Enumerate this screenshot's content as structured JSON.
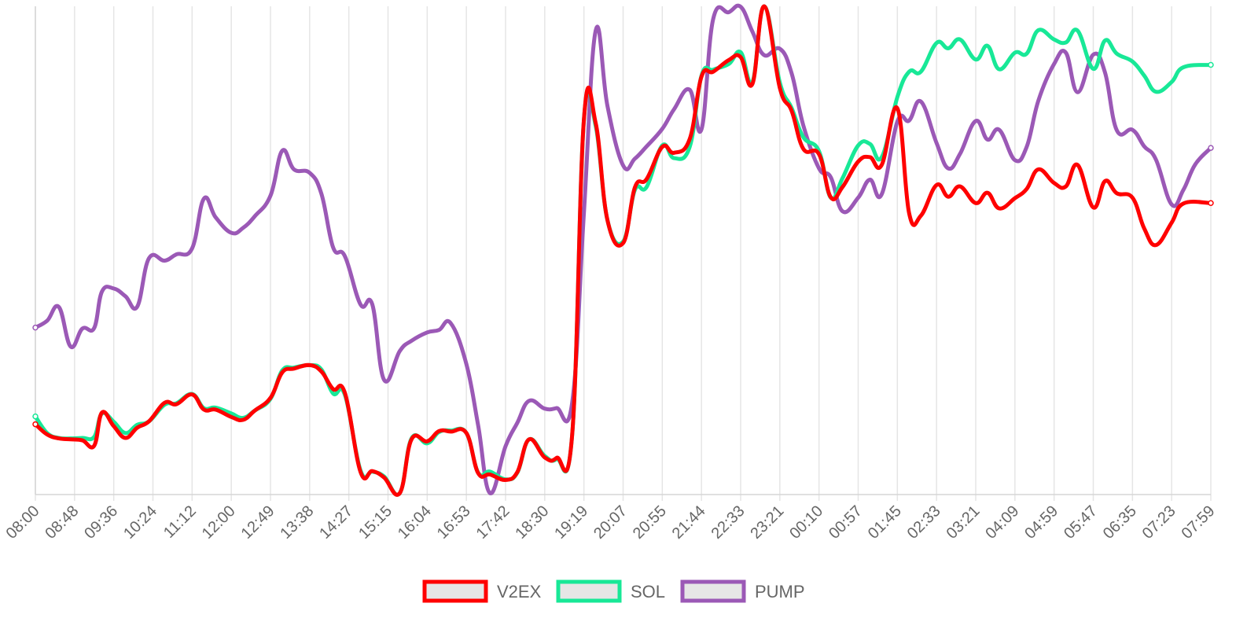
{
  "chart_data": {
    "type": "line",
    "title": "",
    "xlabel": "",
    "ylabel": "",
    "grid": "vertical",
    "legend_position": "bottom",
    "x_ticks": [
      "08:00",
      "08:48",
      "09:36",
      "10:24",
      "11:12",
      "12:00",
      "12:49",
      "13:38",
      "14:27",
      "15:15",
      "16:04",
      "16:53",
      "17:42",
      "18:30",
      "19:19",
      "20:07",
      "20:55",
      "21:44",
      "22:33",
      "23:21",
      "00:10",
      "00:57",
      "01:45",
      "02:33",
      "03:21",
      "04:09",
      "04:59",
      "05:47",
      "06:35",
      "07:23",
      "07:59"
    ],
    "y_range": [
      0,
      100
    ],
    "series": [
      {
        "name": "V2EX",
        "color": "#ff0000",
        "points": [
          [
            0,
            14.4
          ],
          [
            0.3,
            12.3
          ],
          [
            0.6,
            11.5
          ],
          [
            0.9,
            11.3
          ],
          [
            1.2,
            11.1
          ],
          [
            1.5,
            10.0
          ],
          [
            1.7,
            16.8
          ],
          [
            2.0,
            14.0
          ],
          [
            2.3,
            11.6
          ],
          [
            2.6,
            13.7
          ],
          [
            2.9,
            15.0
          ],
          [
            3.3,
            18.8
          ],
          [
            3.6,
            18.5
          ],
          [
            4.0,
            20.5
          ],
          [
            4.3,
            17.4
          ],
          [
            4.6,
            17.4
          ],
          [
            5.0,
            15.9
          ],
          [
            5.3,
            15.3
          ],
          [
            5.6,
            17.2
          ],
          [
            6.0,
            19.8
          ],
          [
            6.3,
            25.0
          ],
          [
            6.6,
            25.8
          ],
          [
            7.0,
            26.5
          ],
          [
            7.3,
            25.2
          ],
          [
            7.6,
            21.6
          ],
          [
            7.9,
            20.8
          ],
          [
            8.3,
            4.6
          ],
          [
            8.6,
            4.8
          ],
          [
            8.9,
            3.5
          ],
          [
            9.3,
            0.3
          ],
          [
            9.6,
            11.3
          ],
          [
            10.0,
            10.9
          ],
          [
            10.3,
            13.0
          ],
          [
            10.6,
            12.9
          ],
          [
            11.0,
            12.6
          ],
          [
            11.3,
            4.4
          ],
          [
            11.6,
            4.1
          ],
          [
            12.0,
            3.0
          ],
          [
            12.3,
            4.6
          ],
          [
            12.6,
            11.3
          ],
          [
            13.0,
            7.6
          ],
          [
            13.3,
            7.5
          ],
          [
            13.7,
            12.2
          ],
          [
            14.0,
            76.9
          ],
          [
            14.3,
            76.1
          ],
          [
            14.6,
            56.2
          ],
          [
            15.0,
            51.5
          ],
          [
            15.3,
            62.9
          ],
          [
            15.6,
            64.6
          ],
          [
            16.0,
            71.2
          ],
          [
            16.3,
            70.0
          ],
          [
            16.7,
            72.8
          ],
          [
            17.0,
            85.6
          ],
          [
            17.3,
            86.6
          ],
          [
            17.7,
            89.0
          ],
          [
            18.0,
            89.6
          ],
          [
            18.3,
            84.1
          ],
          [
            18.6,
            100
          ],
          [
            19.0,
            83.3
          ],
          [
            19.3,
            78.6
          ],
          [
            19.6,
            70.8
          ],
          [
            20.0,
            69.7
          ],
          [
            20.3,
            60.9
          ],
          [
            20.6,
            63.0
          ],
          [
            21.0,
            68.2
          ],
          [
            21.3,
            69.1
          ],
          [
            21.6,
            67.5
          ],
          [
            22.0,
            79.1
          ],
          [
            22.3,
            57.6
          ],
          [
            22.6,
            57.1
          ],
          [
            23.0,
            63.4
          ],
          [
            23.3,
            61.0
          ],
          [
            23.6,
            63.1
          ],
          [
            24.0,
            59.7
          ],
          [
            24.3,
            61.8
          ],
          [
            24.6,
            58.6
          ],
          [
            25.0,
            60.7
          ],
          [
            25.3,
            62.6
          ],
          [
            25.6,
            66.6
          ],
          [
            26.0,
            63.8
          ],
          [
            26.3,
            63.1
          ],
          [
            26.6,
            67.5
          ],
          [
            27.0,
            58.8
          ],
          [
            27.3,
            64.2
          ],
          [
            27.6,
            61.7
          ],
          [
            28.0,
            60.8
          ],
          [
            28.3,
            54.5
          ],
          [
            28.6,
            51.1
          ],
          [
            29.0,
            55.7
          ],
          [
            29.3,
            59.6
          ],
          [
            30.0,
            59.7
          ]
        ]
      },
      {
        "name": "SOL",
        "color": "#18e897",
        "points": [
          [
            0,
            16.0
          ],
          [
            0.3,
            12.6
          ],
          [
            0.6,
            11.6
          ],
          [
            0.9,
            11.5
          ],
          [
            1.2,
            11.6
          ],
          [
            1.5,
            11.8
          ],
          [
            1.7,
            16.6
          ],
          [
            2.0,
            14.9
          ],
          [
            2.3,
            12.6
          ],
          [
            2.6,
            14.3
          ],
          [
            2.9,
            15.0
          ],
          [
            3.3,
            18.4
          ],
          [
            3.6,
            18.7
          ],
          [
            4.0,
            20.6
          ],
          [
            4.3,
            17.7
          ],
          [
            4.6,
            17.8
          ],
          [
            5.0,
            16.6
          ],
          [
            5.3,
            15.7
          ],
          [
            5.6,
            17.2
          ],
          [
            6.0,
            19.6
          ],
          [
            6.3,
            25.4
          ],
          [
            6.6,
            26.0
          ],
          [
            7.0,
            26.5
          ],
          [
            7.3,
            25.6
          ],
          [
            7.6,
            20.7
          ],
          [
            7.9,
            20.4
          ],
          [
            8.3,
            4.9
          ],
          [
            8.6,
            4.7
          ],
          [
            8.9,
            3.7
          ],
          [
            9.3,
            0.3
          ],
          [
            9.6,
            11.5
          ],
          [
            10.0,
            10.5
          ],
          [
            10.3,
            12.8
          ],
          [
            10.6,
            13.1
          ],
          [
            11.0,
            12.6
          ],
          [
            11.3,
            4.5
          ],
          [
            11.6,
            4.7
          ],
          [
            12.0,
            3.1
          ],
          [
            12.3,
            4.5
          ],
          [
            12.6,
            11.3
          ],
          [
            13.0,
            7.9
          ],
          [
            13.3,
            7.3
          ],
          [
            13.7,
            12.2
          ],
          [
            14.0,
            76.8
          ],
          [
            14.3,
            75.5
          ],
          [
            14.6,
            56.2
          ],
          [
            15.0,
            51.8
          ],
          [
            15.3,
            62.4
          ],
          [
            15.6,
            63.0
          ],
          [
            16.0,
            71.5
          ],
          [
            16.3,
            68.9
          ],
          [
            16.7,
            71.2
          ],
          [
            17.0,
            85.8
          ],
          [
            17.3,
            87.0
          ],
          [
            17.7,
            88.2
          ],
          [
            18.0,
            90.6
          ],
          [
            18.3,
            84.5
          ],
          [
            18.6,
            100
          ],
          [
            19.0,
            84.4
          ],
          [
            19.3,
            79.2
          ],
          [
            19.6,
            73.2
          ],
          [
            20.0,
            70.3
          ],
          [
            20.3,
            60.8
          ],
          [
            20.6,
            64.8
          ],
          [
            21.0,
            71.5
          ],
          [
            21.3,
            71.8
          ],
          [
            21.6,
            69.1
          ],
          [
            22.0,
            81.4
          ],
          [
            22.3,
            86.6
          ],
          [
            22.6,
            86.6
          ],
          [
            23.0,
            92.5
          ],
          [
            23.3,
            91.4
          ],
          [
            23.6,
            93.2
          ],
          [
            24.0,
            89.1
          ],
          [
            24.3,
            91.9
          ],
          [
            24.6,
            87.1
          ],
          [
            25.0,
            90.5
          ],
          [
            25.3,
            90.3
          ],
          [
            25.6,
            95.1
          ],
          [
            26.0,
            93.2
          ],
          [
            26.3,
            92.6
          ],
          [
            26.6,
            95.0
          ],
          [
            27.0,
            87.2
          ],
          [
            27.3,
            93.0
          ],
          [
            27.6,
            90.3
          ],
          [
            28.0,
            88.7
          ],
          [
            28.3,
            85.8
          ],
          [
            28.6,
            82.5
          ],
          [
            29.0,
            84.5
          ],
          [
            29.3,
            87.5
          ],
          [
            30.0,
            88.0
          ]
        ]
      },
      {
        "name": "PUMP",
        "color": "#9b59b6",
        "points": [
          [
            0,
            34.2
          ],
          [
            0.3,
            35.6
          ],
          [
            0.6,
            38.4
          ],
          [
            0.9,
            30.3
          ],
          [
            1.2,
            34.0
          ],
          [
            1.5,
            34.1
          ],
          [
            1.7,
            41.6
          ],
          [
            2.0,
            42.2
          ],
          [
            2.3,
            40.6
          ],
          [
            2.6,
            38.5
          ],
          [
            2.9,
            48.4
          ],
          [
            3.3,
            47.9
          ],
          [
            3.6,
            49.2
          ],
          [
            4.0,
            50.4
          ],
          [
            4.3,
            60.6
          ],
          [
            4.6,
            56.8
          ],
          [
            5.0,
            53.6
          ],
          [
            5.3,
            54.6
          ],
          [
            5.6,
            57.0
          ],
          [
            6.0,
            61.2
          ],
          [
            6.3,
            70.4
          ],
          [
            6.6,
            66.6
          ],
          [
            7.0,
            65.9
          ],
          [
            7.3,
            61.6
          ],
          [
            7.6,
            50.6
          ],
          [
            7.9,
            48.8
          ],
          [
            8.3,
            38.9
          ],
          [
            8.6,
            38.9
          ],
          [
            8.9,
            23.5
          ],
          [
            9.3,
            29.4
          ],
          [
            9.6,
            31.5
          ],
          [
            10.0,
            33.2
          ],
          [
            10.3,
            33.7
          ],
          [
            10.6,
            35.1
          ],
          [
            11.0,
            26.7
          ],
          [
            11.3,
            14.2
          ],
          [
            11.6,
            0.3
          ],
          [
            12.0,
            9.9
          ],
          [
            12.3,
            14.7
          ],
          [
            12.6,
            19.2
          ],
          [
            13.0,
            17.6
          ],
          [
            13.3,
            17.7
          ],
          [
            13.7,
            18.8
          ],
          [
            14.0,
            57.8
          ],
          [
            14.3,
            95.0
          ],
          [
            14.6,
            79.6
          ],
          [
            15.0,
            67.4
          ],
          [
            15.3,
            68.8
          ],
          [
            15.6,
            71.3
          ],
          [
            16.0,
            74.9
          ],
          [
            16.3,
            78.9
          ],
          [
            16.7,
            82.9
          ],
          [
            17.0,
            74.8
          ],
          [
            17.3,
            97.4
          ],
          [
            17.7,
            98.8
          ],
          [
            18.0,
            99.9
          ],
          [
            18.3,
            94.8
          ],
          [
            18.6,
            90.0
          ],
          [
            19.0,
            91.3
          ],
          [
            19.3,
            86.3
          ],
          [
            19.6,
            75.6
          ],
          [
            20.0,
            66.8
          ],
          [
            20.3,
            65.0
          ],
          [
            20.6,
            58.0
          ],
          [
            21.0,
            60.8
          ],
          [
            21.3,
            64.5
          ],
          [
            21.6,
            61.5
          ],
          [
            22.0,
            76.4
          ],
          [
            22.3,
            76.6
          ],
          [
            22.6,
            80.5
          ],
          [
            23.0,
            72.0
          ],
          [
            23.3,
            66.8
          ],
          [
            23.6,
            69.8
          ],
          [
            24.0,
            76.5
          ],
          [
            24.3,
            72.7
          ],
          [
            24.6,
            74.7
          ],
          [
            25.0,
            68.5
          ],
          [
            25.3,
            71.2
          ],
          [
            25.6,
            80.7
          ],
          [
            26.0,
            88.2
          ],
          [
            26.3,
            90.5
          ],
          [
            26.6,
            82.4
          ],
          [
            27.0,
            90.1
          ],
          [
            27.3,
            86.4
          ],
          [
            27.6,
            74.6
          ],
          [
            28.0,
            74.7
          ],
          [
            28.3,
            71.3
          ],
          [
            28.6,
            68.6
          ],
          [
            29.0,
            59.4
          ],
          [
            29.3,
            62.4
          ],
          [
            29.6,
            67.6
          ],
          [
            30.0,
            71.0
          ]
        ]
      }
    ]
  }
}
